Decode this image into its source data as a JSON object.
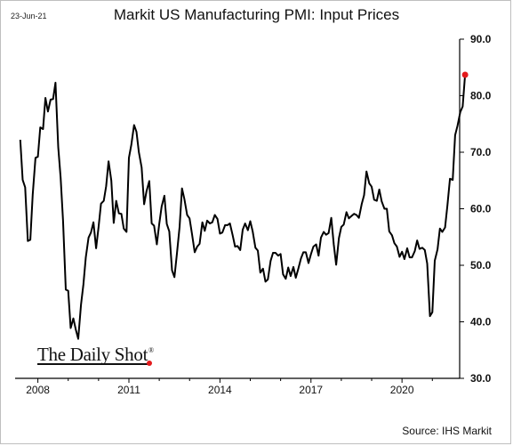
{
  "header": {
    "date": "23-Jun-21",
    "title": "Markit US Manufacturing PMI: Input Prices"
  },
  "footer": {
    "source": "Source: IHS Markit"
  },
  "watermark": {
    "text": "The Daily Shot",
    "reg": "®"
  },
  "colors": {
    "line": "#000000",
    "last_point": "#e31a1c",
    "axis": "#000000"
  },
  "chart_data": {
    "type": "line",
    "title": "Markit US Manufacturing PMI: Input Prices",
    "xlabel": "",
    "ylabel": "",
    "ylim": [
      30,
      90
    ],
    "y_ticks": [
      30,
      40,
      50,
      60,
      70,
      80,
      90
    ],
    "y_tick_labels": [
      "30.0",
      "40.0",
      "50.0",
      "60.0",
      "70.0",
      "80.0",
      "90.0"
    ],
    "x_ticks": [
      2008,
      2011,
      2014,
      2017,
      2020
    ],
    "x_tick_labels": [
      "2008",
      "2011",
      "2014",
      "2017",
      "2020"
    ],
    "xlim": [
      2007.25,
      2021.9
    ],
    "y_axis_side": "right",
    "grid": false,
    "highlight_last_point": true,
    "series": [
      {
        "values": [
          [
            2007.42,
            72.2
          ],
          [
            2007.5,
            65.1
          ],
          [
            2007.58,
            63.8
          ],
          [
            2007.67,
            54.3
          ],
          [
            2007.75,
            54.5
          ],
          [
            2007.83,
            62.5
          ],
          [
            2007.92,
            69.0
          ],
          [
            2008.0,
            69.2
          ],
          [
            2008.08,
            74.4
          ],
          [
            2008.17,
            74.1
          ],
          [
            2008.25,
            79.6
          ],
          [
            2008.33,
            77.2
          ],
          [
            2008.42,
            79.3
          ],
          [
            2008.5,
            79.4
          ],
          [
            2008.58,
            82.3
          ],
          [
            2008.67,
            70.9
          ],
          [
            2008.75,
            65.5
          ],
          [
            2008.83,
            57.9
          ],
          [
            2008.92,
            45.7
          ],
          [
            2009.0,
            45.5
          ],
          [
            2009.08,
            38.9
          ],
          [
            2009.17,
            40.6
          ],
          [
            2009.25,
            38.6
          ],
          [
            2009.33,
            37.0
          ],
          [
            2009.42,
            43.0
          ],
          [
            2009.5,
            46.6
          ],
          [
            2009.58,
            51.4
          ],
          [
            2009.67,
            54.9
          ],
          [
            2009.75,
            55.8
          ],
          [
            2009.83,
            57.6
          ],
          [
            2009.92,
            53.0
          ],
          [
            2010.0,
            56.8
          ],
          [
            2010.08,
            60.9
          ],
          [
            2010.17,
            61.4
          ],
          [
            2010.25,
            64.0
          ],
          [
            2010.33,
            68.4
          ],
          [
            2010.42,
            65.0
          ],
          [
            2010.5,
            57.5
          ],
          [
            2010.58,
            61.4
          ],
          [
            2010.67,
            59.2
          ],
          [
            2010.75,
            59.1
          ],
          [
            2010.83,
            56.5
          ],
          [
            2010.92,
            55.9
          ],
          [
            2011.0,
            69.0
          ],
          [
            2011.08,
            71.3
          ],
          [
            2011.17,
            74.8
          ],
          [
            2011.25,
            73.6
          ],
          [
            2011.33,
            70.0
          ],
          [
            2011.42,
            67.3
          ],
          [
            2011.5,
            60.8
          ],
          [
            2011.58,
            63.1
          ],
          [
            2011.67,
            64.9
          ],
          [
            2011.75,
            57.4
          ],
          [
            2011.83,
            57.0
          ],
          [
            2011.92,
            53.7
          ],
          [
            2012.0,
            57.3
          ],
          [
            2012.08,
            60.4
          ],
          [
            2012.17,
            62.3
          ],
          [
            2012.25,
            57.3
          ],
          [
            2012.33,
            56.0
          ],
          [
            2012.42,
            49.1
          ],
          [
            2012.5,
            47.9
          ],
          [
            2012.58,
            51.9
          ],
          [
            2012.67,
            56.8
          ],
          [
            2012.75,
            63.6
          ],
          [
            2012.83,
            61.7
          ],
          [
            2012.92,
            58.9
          ],
          [
            2013.0,
            58.3
          ],
          [
            2013.08,
            55.5
          ],
          [
            2013.17,
            52.3
          ],
          [
            2013.25,
            53.3
          ],
          [
            2013.33,
            53.8
          ],
          [
            2013.42,
            57.6
          ],
          [
            2013.5,
            56.1
          ],
          [
            2013.58,
            57.9
          ],
          [
            2013.67,
            57.4
          ],
          [
            2013.75,
            57.6
          ],
          [
            2013.83,
            58.9
          ],
          [
            2013.92,
            58.2
          ],
          [
            2014.0,
            55.6
          ],
          [
            2014.08,
            55.8
          ],
          [
            2014.17,
            57.1
          ],
          [
            2014.25,
            57.1
          ],
          [
            2014.33,
            57.4
          ],
          [
            2014.42,
            55.3
          ],
          [
            2014.5,
            53.3
          ],
          [
            2014.58,
            53.4
          ],
          [
            2014.67,
            52.7
          ],
          [
            2014.75,
            56.3
          ],
          [
            2014.83,
            57.4
          ],
          [
            2014.92,
            56.2
          ],
          [
            2015.0,
            57.8
          ],
          [
            2015.08,
            56.0
          ],
          [
            2015.17,
            53.1
          ],
          [
            2015.25,
            52.6
          ],
          [
            2015.33,
            48.7
          ],
          [
            2015.42,
            49.4
          ],
          [
            2015.5,
            47.1
          ],
          [
            2015.58,
            47.5
          ],
          [
            2015.67,
            50.8
          ],
          [
            2015.75,
            52.2
          ],
          [
            2015.83,
            52.2
          ],
          [
            2015.92,
            51.7
          ],
          [
            2016.0,
            52.0
          ],
          [
            2016.08,
            48.4
          ],
          [
            2016.17,
            47.6
          ],
          [
            2016.25,
            49.6
          ],
          [
            2016.33,
            48.1
          ],
          [
            2016.42,
            49.7
          ],
          [
            2016.5,
            47.8
          ],
          [
            2016.58,
            49.3
          ],
          [
            2016.67,
            51.2
          ],
          [
            2016.75,
            52.3
          ],
          [
            2016.83,
            52.3
          ],
          [
            2016.92,
            50.4
          ],
          [
            2017.0,
            52.0
          ],
          [
            2017.08,
            53.3
          ],
          [
            2017.17,
            53.7
          ],
          [
            2017.25,
            51.7
          ],
          [
            2017.33,
            54.9
          ],
          [
            2017.42,
            55.9
          ],
          [
            2017.5,
            55.4
          ],
          [
            2017.58,
            55.7
          ],
          [
            2017.67,
            58.4
          ],
          [
            2017.75,
            53.7
          ],
          [
            2017.83,
            50.1
          ],
          [
            2017.92,
            54.8
          ],
          [
            2018.0,
            56.8
          ],
          [
            2018.08,
            57.2
          ],
          [
            2018.17,
            59.4
          ],
          [
            2018.25,
            58.3
          ],
          [
            2018.33,
            58.7
          ],
          [
            2018.42,
            59.1
          ],
          [
            2018.5,
            58.9
          ],
          [
            2018.58,
            58.4
          ],
          [
            2018.67,
            60.8
          ],
          [
            2018.75,
            62.4
          ],
          [
            2018.83,
            66.6
          ],
          [
            2018.92,
            64.5
          ],
          [
            2019.0,
            63.9
          ],
          [
            2019.08,
            61.6
          ],
          [
            2019.17,
            61.4
          ],
          [
            2019.25,
            63.4
          ],
          [
            2019.33,
            61.3
          ],
          [
            2019.42,
            60.0
          ],
          [
            2019.5,
            60.0
          ],
          [
            2019.58,
            56.0
          ],
          [
            2019.67,
            55.3
          ],
          [
            2019.75,
            53.9
          ],
          [
            2019.83,
            53.3
          ],
          [
            2019.92,
            51.5
          ],
          [
            2020.0,
            52.4
          ],
          [
            2020.08,
            51.1
          ],
          [
            2020.17,
            53.0
          ],
          [
            2020.25,
            51.4
          ],
          [
            2020.33,
            51.4
          ],
          [
            2020.42,
            52.5
          ],
          [
            2020.5,
            54.4
          ],
          [
            2020.58,
            52.9
          ],
          [
            2020.67,
            53.1
          ],
          [
            2020.75,
            52.7
          ],
          [
            2020.83,
            50.3
          ],
          [
            2020.92,
            41.0
          ],
          [
            2021.0,
            41.7
          ],
          [
            2021.08,
            50.8
          ],
          [
            2021.17,
            52.8
          ],
          [
            2021.25,
            56.5
          ],
          [
            2021.33,
            55.9
          ],
          [
            2021.42,
            56.7
          ],
          [
            2021.5,
            60.7
          ],
          [
            2021.58,
            65.3
          ],
          [
            2021.67,
            65.1
          ],
          [
            2021.75,
            73.0
          ],
          [
            2021.83,
            74.7
          ],
          [
            2021.92,
            77.1
          ],
          [
            2022.0,
            78.1
          ],
          [
            2022.08,
            83.7
          ]
        ]
      }
    ]
  }
}
